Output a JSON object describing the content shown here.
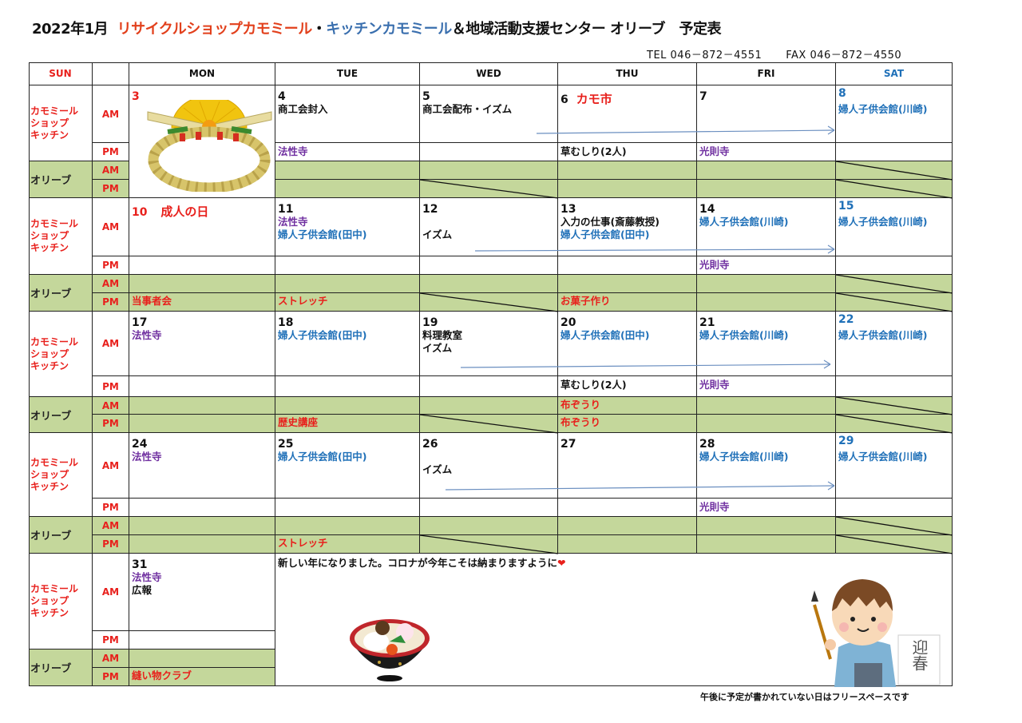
{
  "title": {
    "prefix": "2022年1月",
    "shop": "リサイクルショップカモミール",
    "sep": "・",
    "kitchen": "キッチンカモミール",
    "rest": "＆地域活動支援センター オリーブ　予定表"
  },
  "contact": {
    "tel": "TEL 046－872－4551",
    "fax": "FAX 046－872－4550"
  },
  "header": {
    "sun": "SUN",
    "days": [
      "MON",
      "TUE",
      "WED",
      "THU",
      "FRI",
      "SAT"
    ]
  },
  "row_labels": {
    "kamomile": "カモミール\nショップ\nキッチン",
    "olive": "オリーブ",
    "am": "AM",
    "pm": "PM"
  },
  "colors": {
    "red": "#e8201c",
    "blue": "#1f70b8",
    "purple": "#7030a0",
    "green": "#c4d79b"
  },
  "weeks": [
    {
      "days": [
        {
          "date": "3",
          "date_color": "red",
          "image": "shimenawa-wreath"
        },
        {
          "date": "4",
          "am": [
            {
              "text": "商工会封入",
              "color": "black"
            }
          ],
          "pm": [
            {
              "text": "法性寺",
              "color": "purple"
            }
          ]
        },
        {
          "date": "5",
          "am": [
            {
              "text": "商工会配布・イズム",
              "color": "black"
            }
          ]
        },
        {
          "date": "6",
          "event": "カモ市",
          "pm": [
            {
              "text": "草むしり(2人)",
              "color": "black"
            }
          ]
        },
        {
          "date": "7",
          "pm": [
            {
              "text": "光則寺",
              "color": "purple"
            }
          ]
        },
        {
          "date": "8",
          "date_color": "blue",
          "am": [
            {
              "text": "婦人子供会館(川崎)",
              "color": "blue"
            }
          ]
        }
      ]
    },
    {
      "days": [
        {
          "date": "10",
          "date_color": "red",
          "event": "成人の日",
          "olive_pm": [
            {
              "text": "当事者会",
              "color": "red"
            }
          ]
        },
        {
          "date": "11",
          "am": [
            {
              "text": "法性寺",
              "color": "purple"
            },
            {
              "text": "婦人子供会館(田中)",
              "color": "blue"
            }
          ],
          "olive_pm": [
            {
              "text": "ストレッチ",
              "color": "red"
            }
          ]
        },
        {
          "date": "12",
          "am": [
            {
              "text": "イズム",
              "color": "black"
            }
          ]
        },
        {
          "date": "13",
          "am": [
            {
              "text": "入力の仕事(斎藤教授)",
              "color": "black"
            },
            {
              "text": "婦人子供会館(田中)",
              "color": "blue"
            }
          ],
          "olive_pm": [
            {
              "text": "お菓子作り",
              "color": "red"
            }
          ]
        },
        {
          "date": "14",
          "am": [
            {
              "text": "婦人子供会館(川崎)",
              "color": "blue"
            }
          ],
          "pm": [
            {
              "text": "光則寺",
              "color": "purple"
            }
          ]
        },
        {
          "date": "15",
          "date_color": "blue",
          "am": [
            {
              "text": "婦人子供会館(川崎)",
              "color": "blue"
            }
          ]
        }
      ]
    },
    {
      "days": [
        {
          "date": "17",
          "am": [
            {
              "text": "法性寺",
              "color": "purple"
            }
          ]
        },
        {
          "date": "18",
          "am": [
            {
              "text": "婦人子供会館(田中)",
              "color": "blue"
            }
          ],
          "olive_pm": [
            {
              "text": "歴史講座",
              "color": "red"
            }
          ]
        },
        {
          "date": "19",
          "am": [
            {
              "text": "料理教室",
              "color": "black"
            },
            {
              "text": "イズム",
              "color": "black"
            }
          ]
        },
        {
          "date": "20",
          "am": [
            {
              "text": "婦人子供会館(田中)",
              "color": "blue"
            }
          ],
          "pm": [
            {
              "text": "草むしり(2人)",
              "color": "black"
            }
          ],
          "olive_am": [
            {
              "text": "布ぞうり",
              "color": "red"
            }
          ],
          "olive_pm": [
            {
              "text": "布ぞうり",
              "color": "red"
            }
          ]
        },
        {
          "date": "21",
          "am": [
            {
              "text": "婦人子供会館(川崎)",
              "color": "blue"
            }
          ],
          "pm": [
            {
              "text": "光則寺",
              "color": "purple"
            }
          ]
        },
        {
          "date": "22",
          "date_color": "blue",
          "am": [
            {
              "text": "婦人子供会館(川崎)",
              "color": "blue"
            }
          ]
        }
      ]
    },
    {
      "days": [
        {
          "date": "24",
          "am": [
            {
              "text": "法性寺",
              "color": "purple"
            }
          ]
        },
        {
          "date": "25",
          "am": [
            {
              "text": "婦人子供会館(田中)",
              "color": "blue"
            }
          ],
          "olive_pm": [
            {
              "text": "ストレッチ",
              "color": "red"
            }
          ]
        },
        {
          "date": "26",
          "am": [
            {
              "text": "イズム",
              "color": "black"
            }
          ]
        },
        {
          "date": "27"
        },
        {
          "date": "28",
          "am": [
            {
              "text": "婦人子供会館(川崎)",
              "color": "blue"
            }
          ],
          "pm": [
            {
              "text": "光則寺",
              "color": "purple"
            }
          ]
        },
        {
          "date": "29",
          "date_color": "blue",
          "am": [
            {
              "text": "婦人子供会館(川崎)",
              "color": "blue"
            }
          ]
        }
      ]
    },
    {
      "days": [
        {
          "date": "31",
          "am": [
            {
              "text": "法性寺",
              "color": "purple"
            },
            {
              "text": "広報",
              "color": "black"
            }
          ],
          "olive_pm": [
            {
              "text": "縫い物クラブ",
              "color": "red"
            }
          ]
        }
      ],
      "message": "新しい年になりました。コロナが今年こそは納まりますように",
      "message_icon": "heart-icon",
      "images": [
        "ozoni-bowl",
        "boy-calligraphy-geishun"
      ],
      "calligraphy_text": "迎春"
    }
  ],
  "footnote": "午後に予定が書かれていない日はフリースペースです"
}
